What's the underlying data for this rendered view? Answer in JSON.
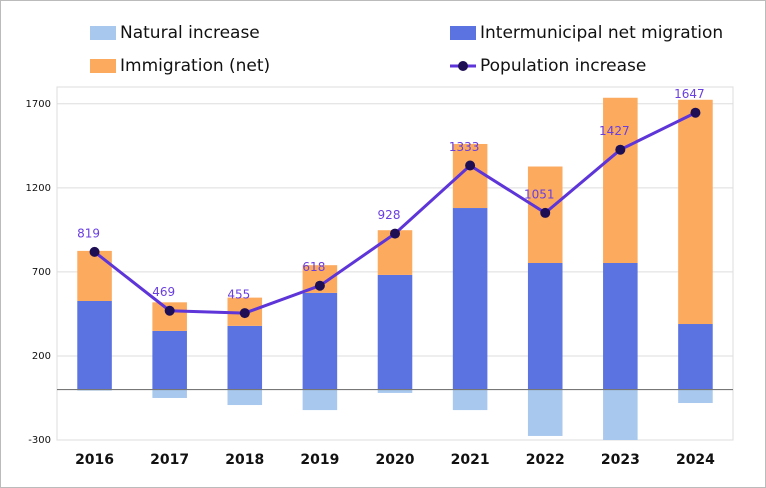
{
  "chart_data": {
    "type": "bar",
    "stacked": true,
    "categories": [
      "2016",
      "2017",
      "2018",
      "2019",
      "2020",
      "2021",
      "2022",
      "2023",
      "2024"
    ],
    "series": [
      {
        "name": "Natural increase",
        "color": "#a9c8ee",
        "values": [
          -6,
          -50,
          -92,
          -122,
          -20,
          -122,
          -276,
          -300,
          -80
        ]
      },
      {
        "name": "Intermunicipal net migration",
        "color": "#5a73e0",
        "values": [
          527,
          349,
          379,
          575,
          682,
          1080,
          753,
          753,
          390
        ]
      },
      {
        "name": "Immigration (net)",
        "color": "#fbaa5e",
        "values": [
          298,
          170,
          168,
          165,
          266,
          381,
          574,
          983,
          1334
        ]
      },
      {
        "name": "Population increase",
        "type": "line",
        "color": "#5d35d8",
        "marker_color": "#1e0f55",
        "values": [
          819,
          469,
          455,
          618,
          928,
          1333,
          1051,
          1427,
          1647
        ]
      }
    ],
    "ylim": [
      -300,
      1800
    ],
    "yticks": [
      -300,
      200,
      700,
      1200,
      1700
    ],
    "grid": true
  }
}
